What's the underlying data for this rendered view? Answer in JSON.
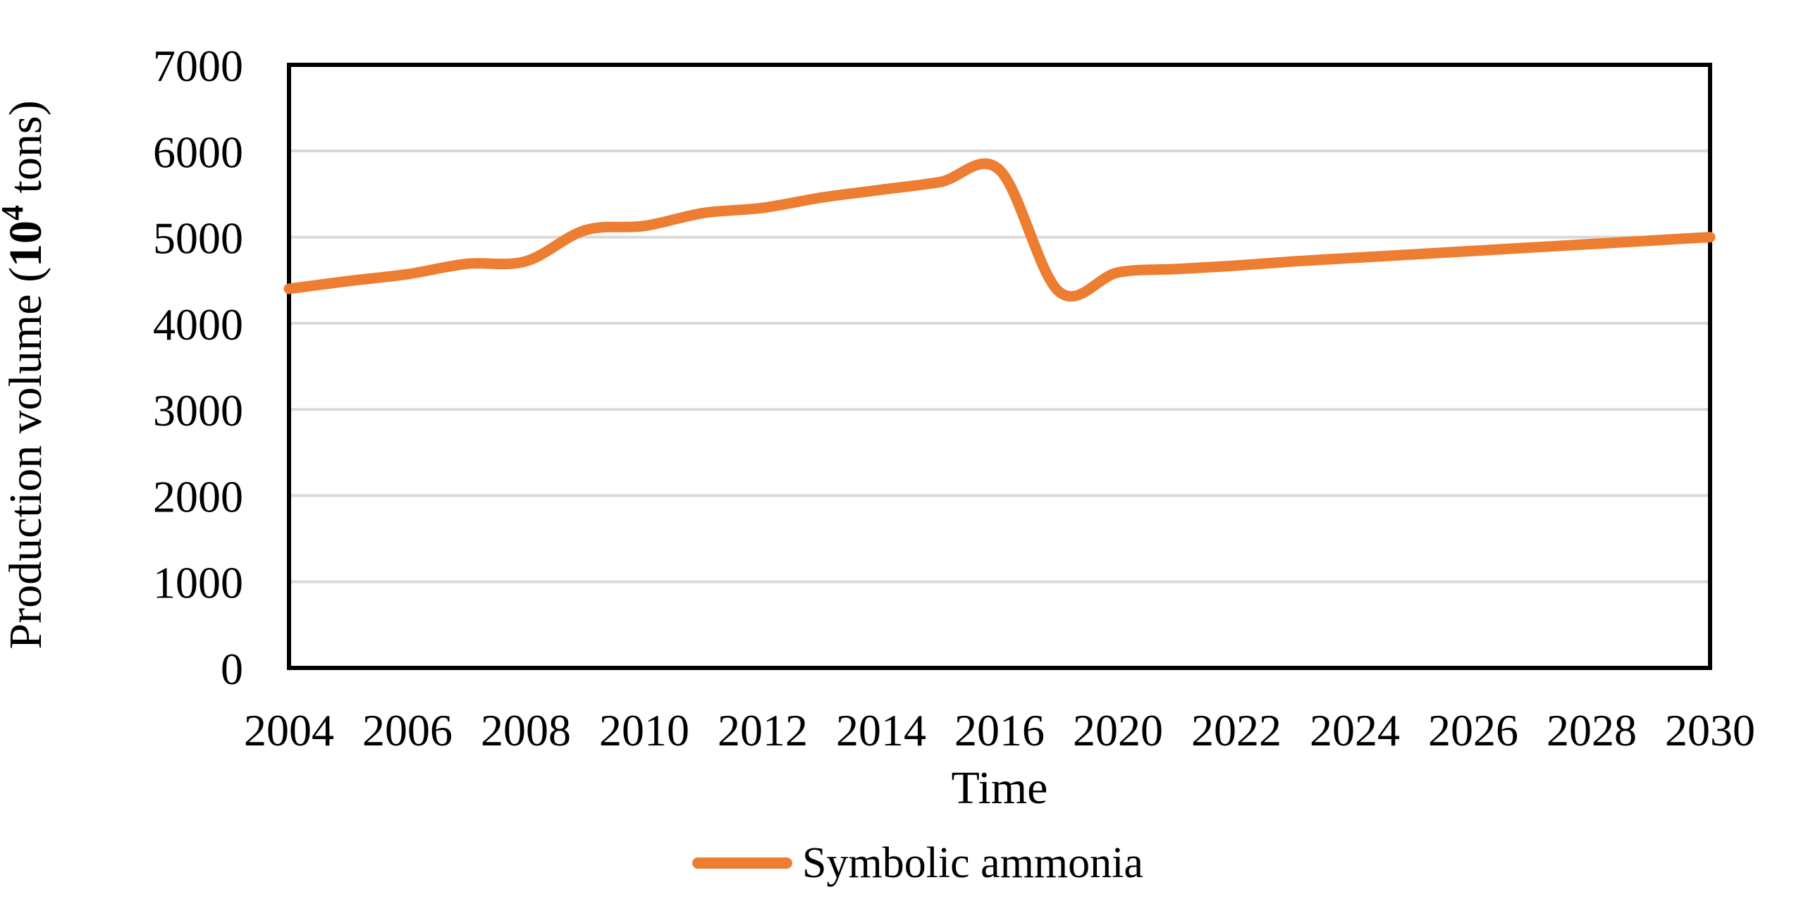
{
  "chart_data": {
    "type": "line",
    "title": "",
    "xlabel": "Time",
    "ylabel": "Production volume (10⁴ tons)",
    "ylabel_parts": {
      "prefix": "Production volume (",
      "bold_base": "10",
      "bold_superscript": "4",
      "suffix": " tons)"
    },
    "x": [
      2004,
      2005,
      2006,
      2007,
      2008,
      2009,
      2010,
      2011,
      2012,
      2013,
      2014,
      2015,
      2016,
      2019,
      2020,
      2021,
      2022,
      2023,
      2024,
      2025,
      2026,
      2027,
      2028,
      2029,
      2030
    ],
    "series": [
      {
        "name": "Symbolic ammonia",
        "color": "#ED7D31",
        "values": [
          4400,
          4490,
          4570,
          4690,
          4720,
          5080,
          5130,
          5280,
          5340,
          5460,
          5550,
          5640,
          5780,
          4370,
          4590,
          4630,
          4670,
          4720,
          4760,
          4800,
          4840,
          4880,
          4920,
          4960,
          5000
        ]
      }
    ],
    "x_tick_labels": [
      "2004",
      "2006",
      "2008",
      "2010",
      "2012",
      "2014",
      "2016",
      "2020",
      "2022",
      "2024",
      "2026",
      "2028",
      "2030"
    ],
    "y_tick_labels": [
      "0",
      "1000",
      "2000",
      "3000",
      "4000",
      "5000",
      "6000",
      "7000"
    ],
    "ylim": [
      0,
      7000
    ],
    "y_tick_step": 1000,
    "grid": "horizontal",
    "gridline_color": "#D9D9D9",
    "axis_color": "#000000",
    "line_smooth": true,
    "legend_position": "bottom"
  },
  "legend": {
    "label": "Symbolic ammonia"
  }
}
